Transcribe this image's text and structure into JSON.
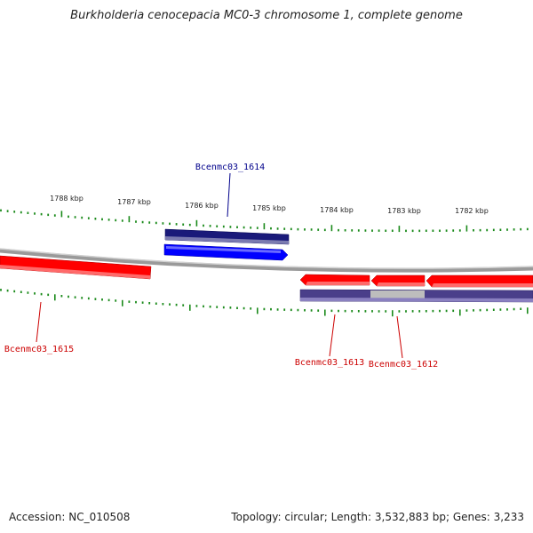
{
  "title": "Burkholderia cenocepacia MC0-3 chromosome 1, complete genome",
  "accession_text": "Accession: NC_010508",
  "stats_text": "Topology: circular; Length: 3,532,883 bp; Genes: 3,233",
  "scale_labels": [
    "1788 kbp",
    "1787 kbp",
    "1786 kbp",
    "1785 kbp",
    "1784 kbp",
    "1783 kbp",
    "1782 kbp"
  ],
  "genes": [
    {
      "label": "Bcenmc03_1614",
      "color": "#00008b",
      "strand": "forward"
    },
    {
      "label": "Bcenmc03_1615",
      "color": "#cc0000",
      "strand": "reverse"
    },
    {
      "label": "Bcenmc03_1613",
      "color": "#cc0000",
      "strand": "reverse"
    },
    {
      "label": "Bcenmc03_1612",
      "color": "#cc0000",
      "strand": "reverse"
    }
  ],
  "colors": {
    "forward_gene": "#0000ff",
    "forward_cds": "#000080",
    "reverse_gene": "#ff0000",
    "reverse_cds": "#4a3f8a",
    "backbone": "#808080",
    "ticks": "#1a8a1a"
  }
}
